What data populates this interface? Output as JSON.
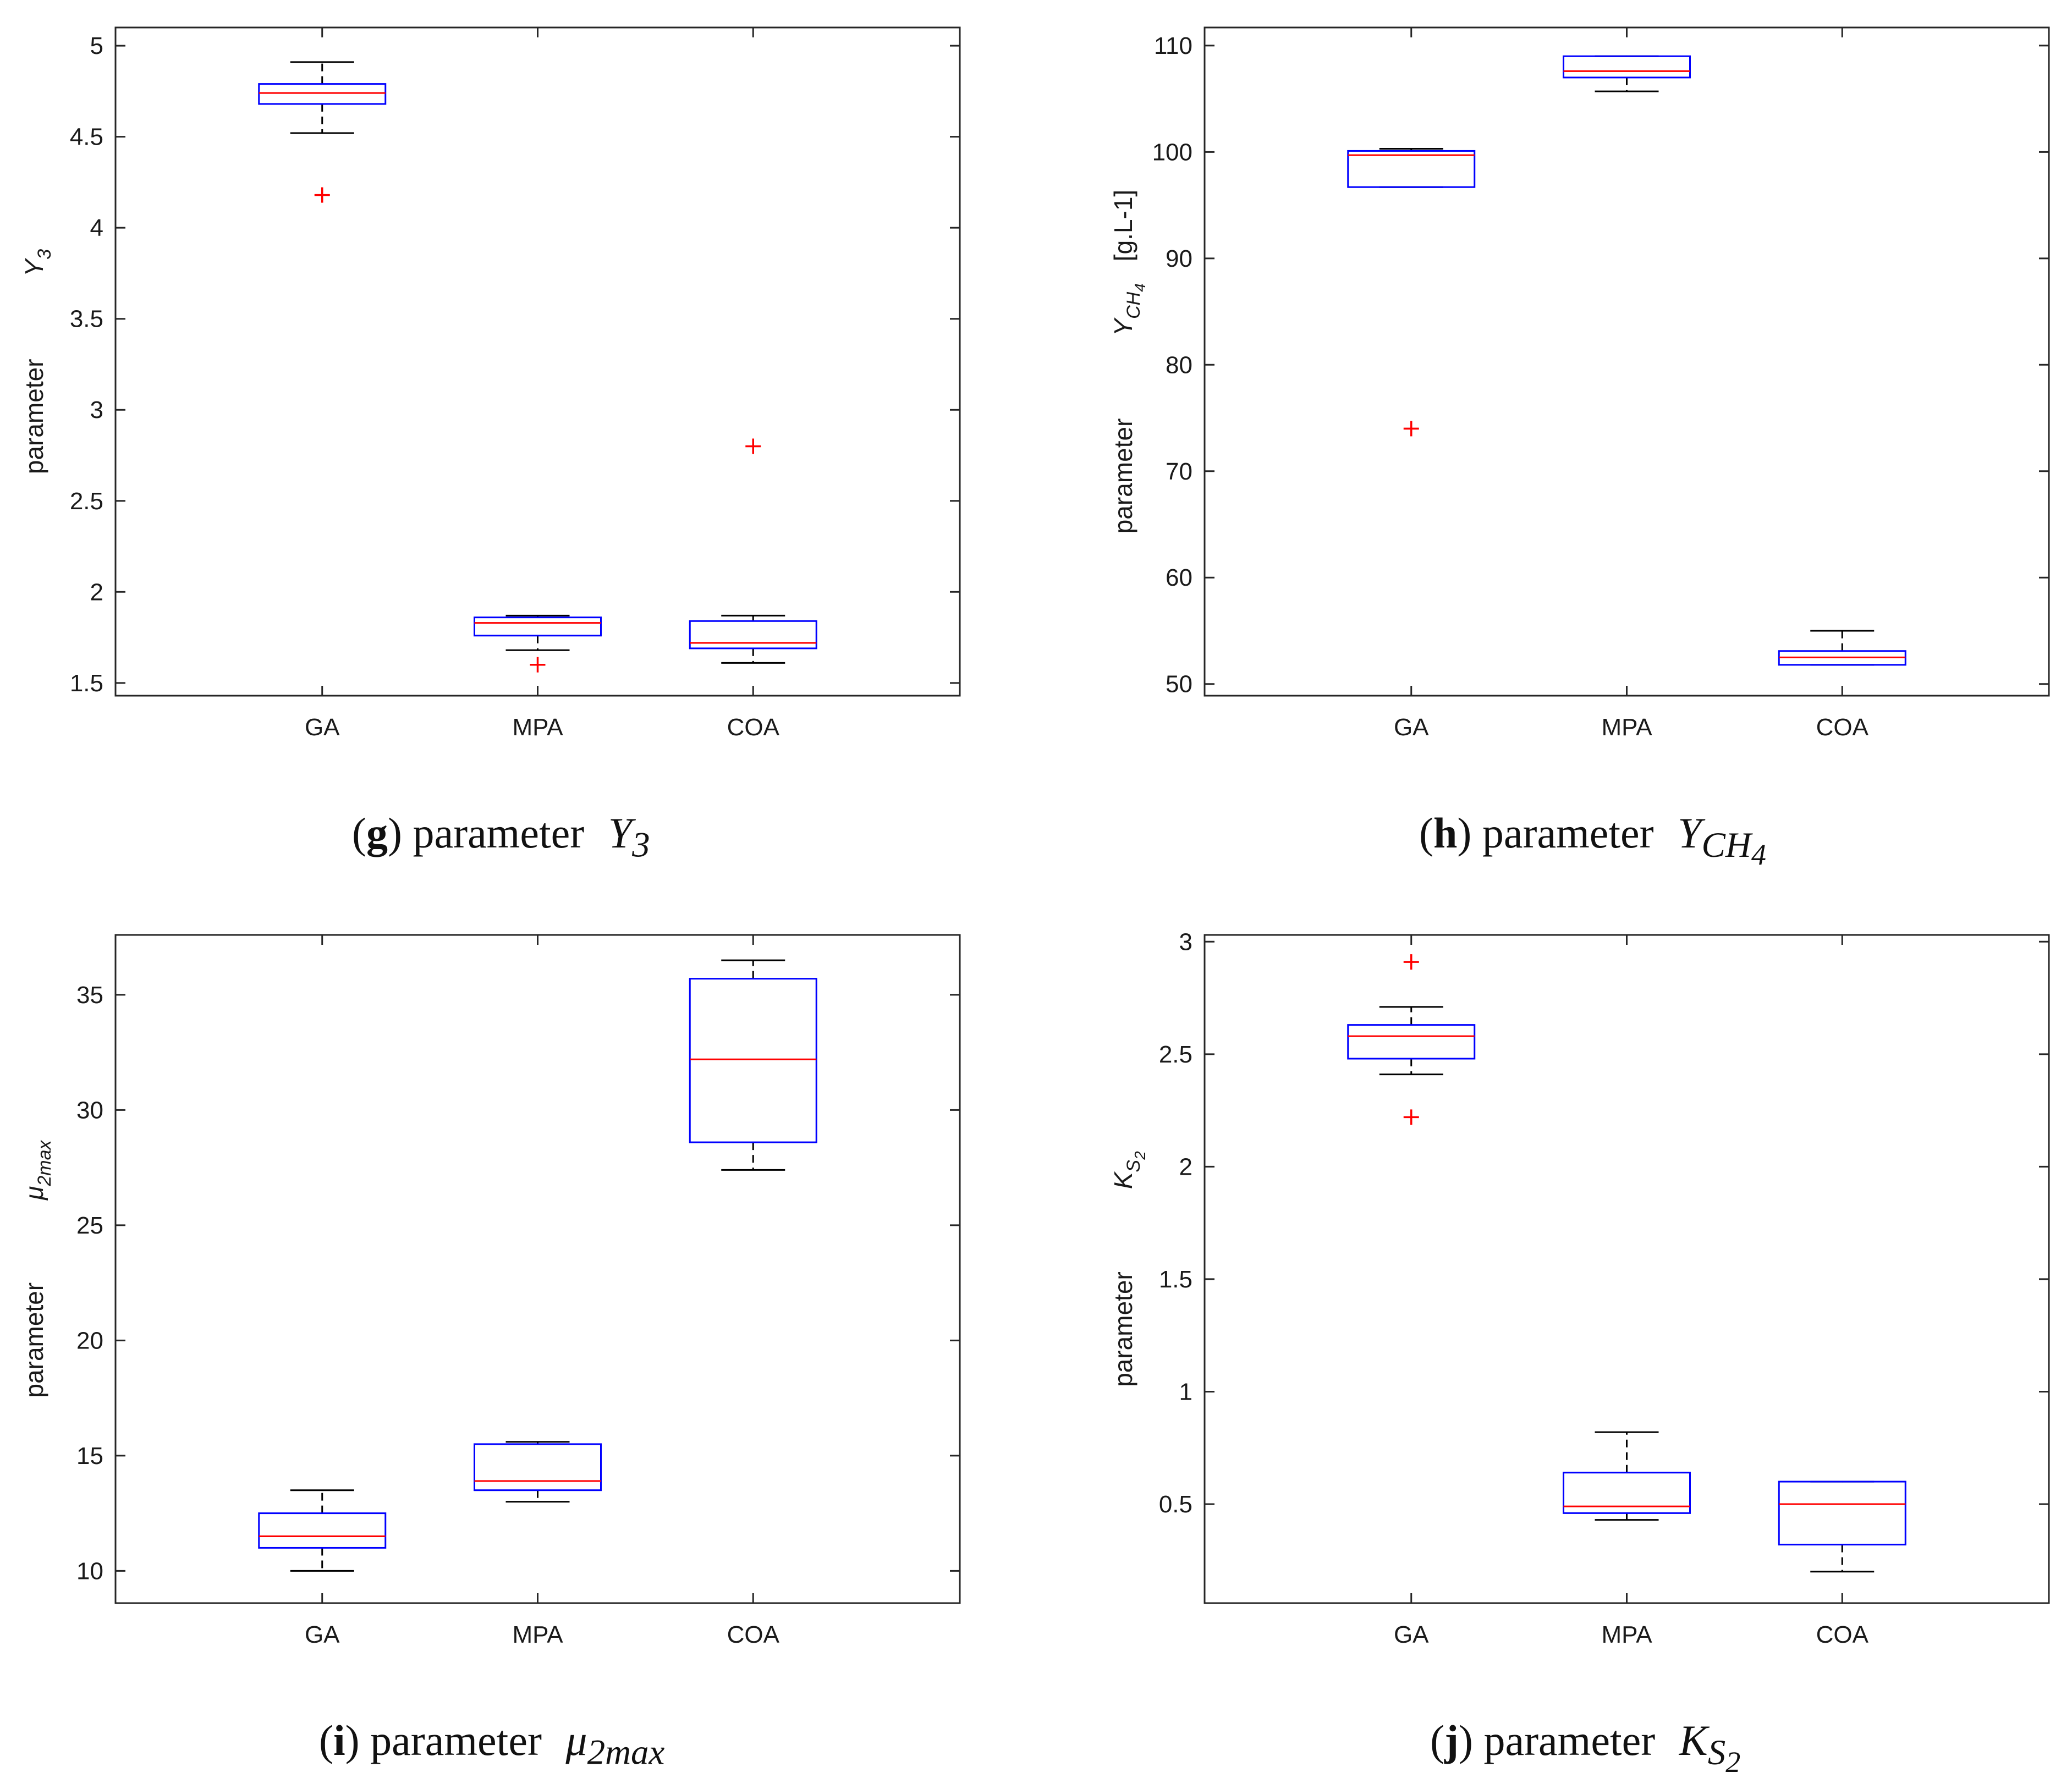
{
  "colors": {
    "box": "#0000ff",
    "median": "#ff0000",
    "outlier": "#ff0000",
    "whisker": "#000000",
    "axis": "#262626"
  },
  "chart_data": [
    {
      "id": "g",
      "type": "box",
      "categories": [
        "GA",
        "MPA",
        "COA"
      ],
      "ylim": [
        1.43,
        5.1
      ],
      "yticks": [
        1.5,
        2,
        2.5,
        3,
        3.5,
        4,
        4.5,
        5
      ],
      "ytick_labels": [
        "1.5",
        "2",
        "2.5",
        "3",
        "3.5",
        "4",
        "4.5",
        "5"
      ],
      "ylabel": {
        "word": "parameter",
        "symbol": "Y",
        "sub": "3",
        "unit": ""
      },
      "caption": {
        "letter": "g",
        "open": "(",
        "close": ")",
        "word": "parameter",
        "symbol": "Y",
        "sub": "3",
        "subsub": ""
      },
      "boxes": [
        {
          "name": "GA",
          "whisker_low": 4.52,
          "q1": 4.68,
          "median": 4.74,
          "q3": 4.79,
          "whisker_high": 4.91,
          "outliers": [
            4.18
          ]
        },
        {
          "name": "MPA",
          "whisker_low": 1.68,
          "q1": 1.76,
          "median": 1.83,
          "q3": 1.86,
          "whisker_high": 1.87,
          "outliers": [
            1.6
          ]
        },
        {
          "name": "COA",
          "whisker_low": 1.61,
          "q1": 1.69,
          "median": 1.72,
          "q3": 1.84,
          "whisker_high": 1.87,
          "outliers": [
            2.8
          ]
        }
      ]
    },
    {
      "id": "h",
      "type": "box",
      "categories": [
        "GA",
        "MPA",
        "COA"
      ],
      "ylim": [
        48.9,
        111.7
      ],
      "yticks": [
        50,
        60,
        70,
        80,
        90,
        100,
        110
      ],
      "ytick_labels": [
        "50",
        "60",
        "70",
        "80",
        "90",
        "100",
        "110"
      ],
      "ylabel": {
        "word": "parameter",
        "symbol": "Y",
        "sub": "CH",
        "subsub": "4",
        "unit": "[g.L-1]"
      },
      "caption": {
        "letter": "h",
        "open": "(",
        "close": ")",
        "word": "parameter",
        "symbol": "Y",
        "sub": "CH",
        "subsub": "4"
      },
      "boxes": [
        {
          "name": "GA",
          "whisker_low": 96.7,
          "q1": 96.7,
          "median": 99.7,
          "q3": 100.1,
          "whisker_high": 100.3,
          "outliers": [
            74
          ]
        },
        {
          "name": "MPA",
          "whisker_low": 105.7,
          "q1": 107,
          "median": 107.6,
          "q3": 109,
          "whisker_high": 109,
          "outliers": []
        },
        {
          "name": "COA",
          "whisker_low": 51.8,
          "q1": 51.8,
          "median": 52.5,
          "q3": 53.1,
          "whisker_high": 55,
          "outliers": []
        }
      ]
    },
    {
      "id": "i",
      "type": "box",
      "categories": [
        "GA",
        "MPA",
        "COA"
      ],
      "ylim": [
        8.6,
        37.6
      ],
      "yticks": [
        10,
        15,
        20,
        25,
        30,
        35
      ],
      "ytick_labels": [
        "10",
        "15",
        "20",
        "25",
        "30",
        "35"
      ],
      "ylabel": {
        "word": "parameter",
        "symbol": "μ",
        "sub": "2max",
        "unit": ""
      },
      "caption": {
        "letter": "i",
        "open": "(",
        "close": ")",
        "word": "parameter",
        "symbol": "μ",
        "sub": "2max",
        "subsub": ""
      },
      "boxes": [
        {
          "name": "GA",
          "whisker_low": 10,
          "q1": 11,
          "median": 11.5,
          "q3": 12.5,
          "whisker_high": 13.5,
          "outliers": []
        },
        {
          "name": "MPA",
          "whisker_low": 13,
          "q1": 13.5,
          "median": 13.9,
          "q3": 15.5,
          "whisker_high": 15.6,
          "outliers": []
        },
        {
          "name": "COA",
          "whisker_low": 27.4,
          "q1": 28.6,
          "median": 32.2,
          "q3": 35.7,
          "whisker_high": 36.5,
          "outliers": []
        }
      ]
    },
    {
      "id": "j",
      "type": "box",
      "categories": [
        "GA",
        "MPA",
        "COA"
      ],
      "ylim": [
        0.06,
        3.03
      ],
      "yticks": [
        0.5,
        1,
        1.5,
        2,
        2.5,
        3
      ],
      "ytick_labels": [
        "0.5",
        "1",
        "1.5",
        "2",
        "2.5",
        "3"
      ],
      "ylabel": {
        "word": "parameter",
        "symbol": "K",
        "sub": "S",
        "subsub": "2",
        "unit": ""
      },
      "caption": {
        "letter": "j",
        "open": "(",
        "close": ")",
        "word": "parameter",
        "symbol": "K",
        "sub": "S",
        "subsub": "2"
      },
      "boxes": [
        {
          "name": "GA",
          "whisker_low": 2.41,
          "q1": 2.48,
          "median": 2.58,
          "q3": 2.63,
          "whisker_high": 2.71,
          "outliers": [
            2.22,
            2.91
          ]
        },
        {
          "name": "MPA",
          "whisker_low": 0.43,
          "q1": 0.46,
          "median": 0.49,
          "q3": 0.64,
          "whisker_high": 0.82,
          "outliers": []
        },
        {
          "name": "COA",
          "whisker_low": 0.2,
          "q1": 0.32,
          "median": 0.5,
          "q3": 0.6,
          "whisker_high": 0.6,
          "outliers": []
        }
      ]
    }
  ]
}
